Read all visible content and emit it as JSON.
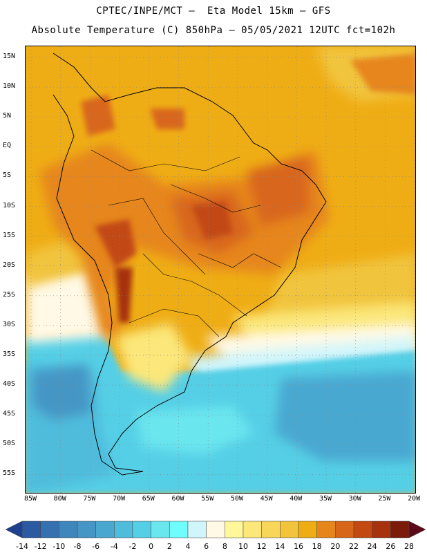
{
  "header": {
    "line1": "CPTEC/INPE/MCT –  Eta Model 15km – GFS",
    "line2": "Absolute Temperature (C) 850hPa – 05/05/2021 12UTC fct=102h"
  },
  "map": {
    "latitude_labels": [
      "15N",
      "10N",
      "5N",
      "EQ",
      "5S",
      "10S",
      "15S",
      "20S",
      "25S",
      "30S",
      "35S",
      "40S",
      "45S",
      "50S",
      "55S"
    ],
    "longitude_labels": [
      "85W",
      "80W",
      "75W",
      "70W",
      "65W",
      "60W",
      "55W",
      "50W",
      "45W",
      "40W",
      "35W",
      "30W",
      "25W",
      "20W"
    ],
    "grid": "dotted"
  },
  "colorbar": {
    "labels": [
      "-14",
      "-12",
      "-10",
      "-8",
      "-6",
      "-4",
      "-2",
      "0",
      "2",
      "4",
      "6",
      "8",
      "10",
      "12",
      "14",
      "16",
      "18",
      "20",
      "22",
      "24",
      "26",
      "28"
    ],
    "colors": [
      "#1f3f8f",
      "#2b5aa3",
      "#3570b0",
      "#3f86bd",
      "#4596c5",
      "#4aa8d0",
      "#50bcdc",
      "#55cfe6",
      "#6ae6ef",
      "#6ffcfc",
      "#d0f5fb",
      "#fff9e6",
      "#fff79a",
      "#fbe77a",
      "#f7d65a",
      "#f1c43c",
      "#efad15",
      "#e6861a",
      "#d8661a",
      "#c24a12",
      "#a6320e",
      "#7d1b0a",
      "#5c0a1a"
    ]
  }
}
